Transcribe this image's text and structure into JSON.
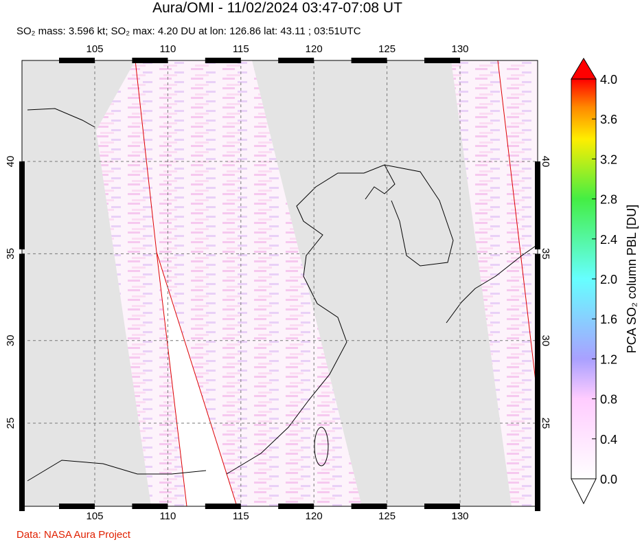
{
  "header": {
    "title": "Aura/OMI - 11/02/2024 03:47-07:08 UT",
    "subtitle": "SO₂ mass: 3.596 kt; SO₂ max: 4.20 DU at lon: 126.86 lat: 43.11 ; 03:51UTC"
  },
  "map": {
    "lon_ticks": [
      105,
      110,
      115,
      120,
      125,
      130
    ],
    "lat_ticks": [
      25,
      30,
      35,
      40
    ]
  },
  "colorbar": {
    "title": "PCA SO₂ column PBL [DU]",
    "labels": [
      "0.0",
      "0.4",
      "0.8",
      "1.2",
      "1.6",
      "2.0",
      "2.4",
      "2.8",
      "3.2",
      "3.6",
      "4.0"
    ]
  },
  "footer": {
    "credit": "Data: NASA Aura Project"
  }
}
